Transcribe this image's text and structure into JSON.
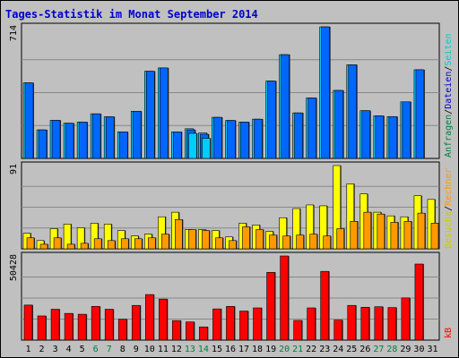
{
  "title": "Tages-Statistik im Monat September 2014",
  "colors": {
    "background": "#C0C0C0",
    "border": "#000000",
    "title": "#0000CC",
    "grid": "#888888",
    "pages_bar": "#00CCFF",
    "files_bar": "#0066FF",
    "hits_bar": "#00CCFF",
    "visits_bar": "#FFFF00",
    "sites_bar": "#FF9900",
    "kb_bar": "#FF0000",
    "weekend_label": "#008040",
    "weekday_label": "#000000"
  },
  "right_legend": {
    "top": [
      {
        "text": "Anfragen",
        "color": "#008040"
      },
      {
        "text": "/",
        "color": "#000000"
      },
      {
        "text": "Dateien",
        "color": "#0000CC"
      },
      {
        "text": "/",
        "color": "#000000"
      },
      {
        "text": "Seiten",
        "color": "#00CCCC"
      }
    ],
    "middle": [
      {
        "text": "Besuche",
        "color": "#CCCC00"
      },
      {
        "text": "/",
        "color": "#000000"
      },
      {
        "text": "Rechner",
        "color": "#FF9900"
      }
    ],
    "bottom": [
      {
        "text": "kB",
        "color": "#FF0000"
      }
    ]
  },
  "chart_data": {
    "type": "bar",
    "categories": [
      "1",
      "2",
      "3",
      "4",
      "5",
      "6",
      "7",
      "8",
      "9",
      "10",
      "11",
      "12",
      "13",
      "14",
      "15",
      "16",
      "17",
      "18",
      "19",
      "20",
      "21",
      "22",
      "23",
      "24",
      "25",
      "26",
      "27",
      "28",
      "29",
      "30",
      "31"
    ],
    "weekend_days": [
      "6",
      "7",
      "13",
      "14",
      "20",
      "21",
      "27",
      "28"
    ],
    "panels": [
      {
        "name": "top",
        "max_label": "714",
        "ymax": 714,
        "series": [
          {
            "name": "Anfragen",
            "values": [
              410,
              155,
              207,
              191,
              197,
              242,
              226,
              144,
              256,
              473,
              491,
              144,
              161,
              138,
              223,
              206,
              197,
              213,
              420,
              563,
              247,
              328,
              714,
              369,
              508,
              259,
              231,
              227,
              307,
              481,
              0
            ]
          },
          {
            "name": "Dateien",
            "values": [
              410,
              155,
              207,
              191,
              197,
              242,
              226,
              144,
              256,
              473,
              491,
              144,
              155,
              131,
              223,
              206,
              197,
              213,
              420,
              563,
              247,
              328,
              714,
              369,
              508,
              259,
              231,
              227,
              307,
              481,
              0
            ]
          },
          {
            "name": "Seiten",
            "values": [
              0,
              0,
              0,
              0,
              0,
              0,
              0,
              0,
              0,
              0,
              0,
              0,
              136,
              109,
              0,
              0,
              0,
              0,
              0,
              0,
              0,
              0,
              0,
              0,
              0,
              0,
              0,
              0,
              0,
              0,
              0
            ]
          }
        ]
      },
      {
        "name": "middle",
        "max_label": "91",
        "ymax": 91,
        "series": [
          {
            "name": "Besuche",
            "values": [
              17,
              9,
              22,
              27,
              23,
              28,
              27,
              20,
              14,
              16,
              35,
              40,
              21,
              21,
              20,
              13,
              28,
              26,
              19,
              34,
              44,
              48,
              47,
              91,
              71,
              60,
              40,
              36,
              35,
              58,
              54
            ]
          },
          {
            "name": "Rechner",
            "values": [
              12,
              5,
              12,
              5,
              6,
              11,
              9,
              11,
              11,
              12,
              16,
              32,
              21,
              20,
              12,
              9,
              24,
              21,
              15,
              14,
              15,
              16,
              14,
              22,
              30,
              40,
              38,
              29,
              30,
              39,
              28
            ]
          }
        ]
      },
      {
        "name": "bottom",
        "max_label": "50428",
        "ymax": 50428,
        "series": [
          {
            "name": "kB",
            "values": [
              21000,
              14500,
              18500,
              16000,
              15500,
              20200,
              18500,
              12500,
              20800,
              27300,
              24600,
              11700,
              10900,
              7900,
              18700,
              20200,
              17400,
              19300,
              40600,
              50428,
              11800,
              19300,
              41200,
              12000,
              20800,
              19700,
              20000,
              19500,
              25300,
              45600,
              0
            ]
          }
        ]
      }
    ]
  }
}
